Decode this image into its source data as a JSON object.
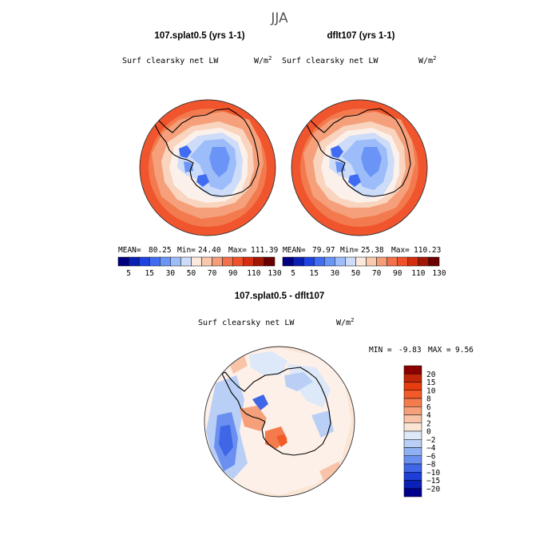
{
  "figure": {
    "season": "JJA",
    "field_label": "Surf clearsky net LW",
    "unit_base": "W/m",
    "unit_exp": "2"
  },
  "panels": [
    {
      "title": "107.splat0.5 (yrs 1-1)",
      "mean_label": "MEAN=",
      "mean": "80.25",
      "min_label": "Min=",
      "min": "24.40",
      "max_label": "Max=",
      "max": "111.39"
    },
    {
      "title": "dflt107 (yrs 1-1)",
      "mean_label": "MEAN=",
      "mean": "79.97",
      "min_label": "Min=",
      "min": "25.38",
      "max_label": "Max=",
      "max": "110.23"
    }
  ],
  "diff_panel": {
    "title": "107.splat0.5 - dflt107",
    "min_label": "MIN =",
    "min": "-9.83",
    "max_label": "MAX =",
    "max": "9.56"
  },
  "colorbar_abs": {
    "colors": [
      "#000080",
      "#0a1fb3",
      "#1f43e0",
      "#3f6cf2",
      "#6a94f6",
      "#9dbcfa",
      "#cddcf8",
      "#fbe9dd",
      "#f8c9ad",
      "#f59c78",
      "#f2704b",
      "#f0522c",
      "#d62e10",
      "#a31705",
      "#6b0000"
    ],
    "ticks": [
      "5",
      "15",
      "30",
      "50",
      "70",
      "90",
      "110",
      "130"
    ]
  },
  "colorbar_diff": {
    "colors": [
      "#8b0000",
      "#c0260a",
      "#e63d10",
      "#f25a28",
      "#f47b4c",
      "#f5a07a",
      "#f8c3a8",
      "#fbe6d6",
      "#dde8f8",
      "#b9cff6",
      "#8fb0f2",
      "#6a8ff0",
      "#3f66e6",
      "#1d3fd8",
      "#0a21b8",
      "#00008c"
    ],
    "labels": [
      "20",
      "15",
      "10",
      "8",
      "6",
      "4",
      "2",
      "0",
      "−2",
      "−4",
      "−6",
      "−8",
      "−10",
      "−15",
      "−20"
    ]
  }
}
